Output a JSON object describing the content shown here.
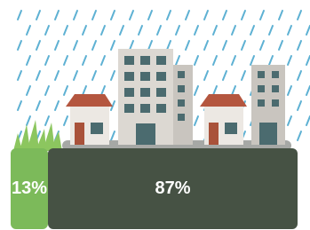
{
  "chart_data": {
    "type": "stacked-bar",
    "values": [
      13,
      87
    ],
    "value_labels": [
      "13%",
      "87%"
    ],
    "colors": [
      "#7cba5a",
      "#465244"
    ],
    "xlim": [
      0,
      100
    ]
  }
}
